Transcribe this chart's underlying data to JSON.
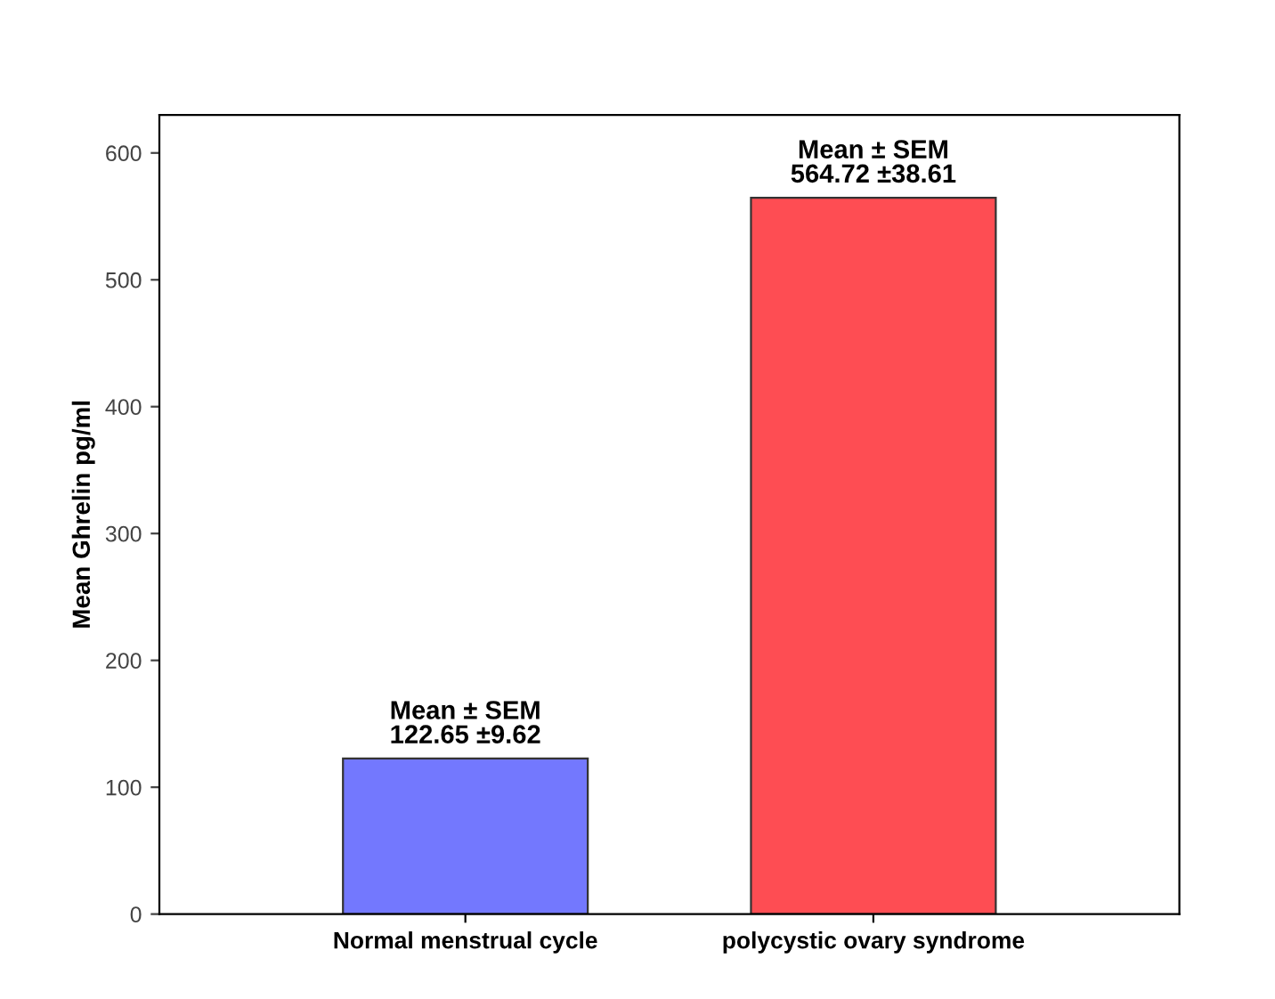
{
  "chart_data": {
    "type": "bar",
    "ylabel": "Mean Ghrelin pg/ml",
    "categories": [
      "Normal menstrual cycle",
      "polycystic ovary syndrome"
    ],
    "values": [
      122.65,
      564.72
    ],
    "colors": [
      "#7378fe",
      "#fe4d53"
    ],
    "value_labels": [
      "Mean ± SEM\n122.65 ±9.62",
      "Mean ± SEM\n564.72 ±38.61"
    ],
    "ylim": [
      0,
      630
    ],
    "yticks": [
      0,
      100,
      200,
      300,
      400,
      500,
      600
    ],
    "grid": false,
    "legend": false
  }
}
